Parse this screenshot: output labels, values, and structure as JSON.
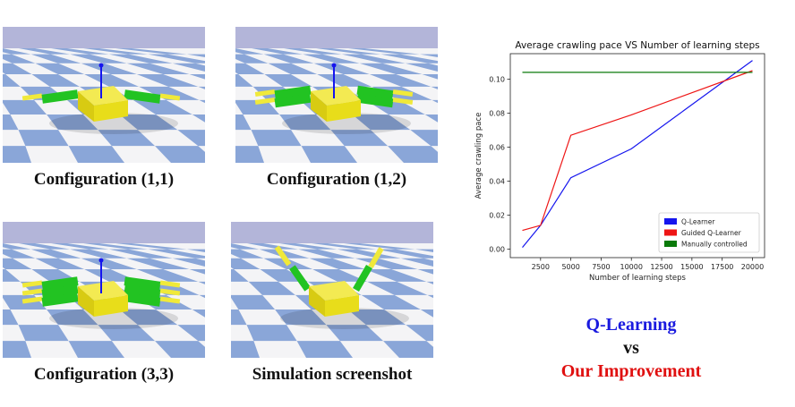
{
  "captions": {
    "c11": "Configuration (1,1)",
    "c12": "Configuration (1,2)",
    "c33": "Configuration (3,3)",
    "sim": "Simulation screenshot"
  },
  "comparison": {
    "line1": "Q-Learning",
    "line2": "vs",
    "line3": "Our Improvement",
    "color1": "#1a1adf",
    "color2": "#111111",
    "color3": "#e01010"
  },
  "scene_colors": {
    "sky": "#b3b5d9",
    "tile_light": "#f4f4f6",
    "tile_blue": "#8aa6d8",
    "body": "#e8dd1a",
    "leg": "#22c322",
    "tip": "#f0e93a",
    "axis": "#1515ee"
  },
  "chart_data": {
    "type": "line",
    "title": "Average crawling pace VS Number of learning steps",
    "xlabel": "Number of learning steps",
    "ylabel": "Average crawling pace",
    "xlim": [
      0,
      21000
    ],
    "ylim": [
      -0.005,
      0.115
    ],
    "xticks": [
      2500,
      5000,
      7500,
      10000,
      12500,
      15000,
      17500,
      20000
    ],
    "yticks": [
      0.0,
      0.02,
      0.04,
      0.06,
      0.08,
      0.1
    ],
    "ytick_labels": [
      "0.00",
      "0.02",
      "0.04",
      "0.06",
      "0.08",
      "0.10"
    ],
    "legend_position": "lower-right",
    "grid": false,
    "series": [
      {
        "name": "Q-Learner",
        "color": "#1515ee",
        "x": [
          1000,
          2500,
          5000,
          10000,
          20000
        ],
        "y": [
          0.001,
          0.014,
          0.042,
          0.059,
          0.111
        ]
      },
      {
        "name": "Guided Q-Learner",
        "color": "#ee1515",
        "x": [
          1000,
          2500,
          5000,
          10000,
          20000
        ],
        "y": [
          0.011,
          0.014,
          0.067,
          0.079,
          0.105
        ]
      },
      {
        "name": "Manually controlled",
        "color": "#0a7a0a",
        "x": [
          1000,
          20000
        ],
        "y": [
          0.104,
          0.104
        ]
      }
    ]
  }
}
